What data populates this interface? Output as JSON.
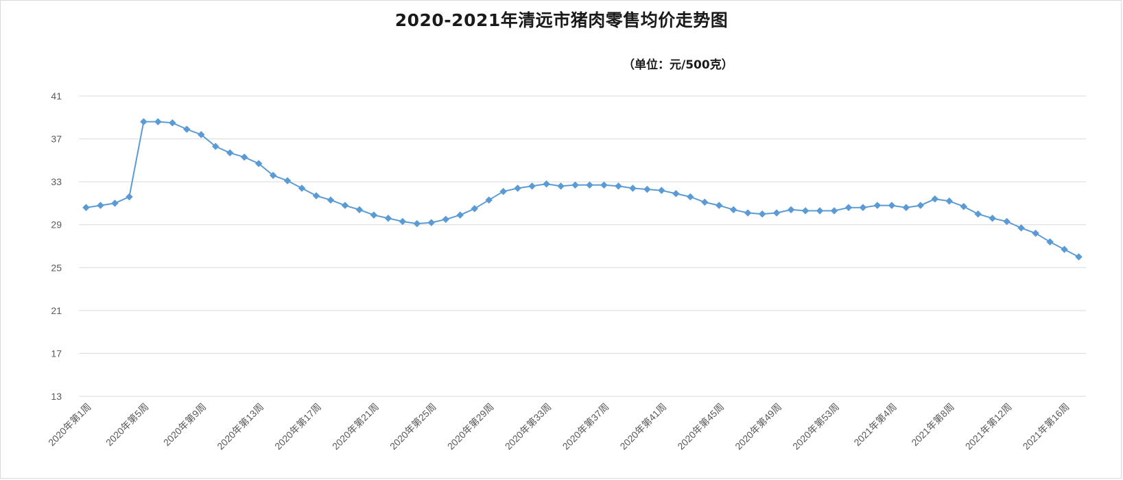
{
  "chart_data": {
    "type": "line",
    "title": "2020-2021年清远市猪肉零售均价走势图",
    "unit": "（单位：元/500克）",
    "ylim": [
      13,
      41
    ],
    "yticks": [
      "13",
      "17",
      "21",
      "25",
      "29",
      "33",
      "37",
      "41"
    ],
    "grid": true,
    "legend": "none",
    "colors": {
      "line": "#5b9bd5",
      "grid": "#d9d9d9",
      "axis_text": "#595959"
    },
    "x": [
      "2020年第1周",
      "2020年第2周",
      "2020年第3周",
      "2020年第4周",
      "2020年第5周",
      "2020年第6周",
      "2020年第7周",
      "2020年第8周",
      "2020年第9周",
      "2020年第10周",
      "2020年第11周",
      "2020年第12周",
      "2020年第13周",
      "2020年第14周",
      "2020年第15周",
      "2020年第16周",
      "2020年第17周",
      "2020年第18周",
      "2020年第19周",
      "2020年第20周",
      "2020年第21周",
      "2020年第22周",
      "2020年第23周",
      "2020年第24周",
      "2020年第25周",
      "2020年第26周",
      "2020年第27周",
      "2020年第28周",
      "2020年第29周",
      "2020年第30周",
      "2020年第31周",
      "2020年第32周",
      "2020年第33周",
      "2020年第34周",
      "2020年第35周",
      "2020年第36周",
      "2020年第37周",
      "2020年第38周",
      "2020年第39周",
      "2020年第40周",
      "2020年第41周",
      "2020年第42周",
      "2020年第43周",
      "2020年第44周",
      "2020年第45周",
      "2020年第46周",
      "2020年第47周",
      "2020年第48周",
      "2020年第49周",
      "2020年第50周",
      "2020年第51周",
      "2020年第52周",
      "2020年第53周",
      "2021年第1周",
      "2021年第2周",
      "2021年第3周",
      "2021年第4周",
      "2021年第5周",
      "2021年第6周",
      "2021年第7周",
      "2021年第8周",
      "2021年第9周",
      "2021年第10周",
      "2021年第11周",
      "2021年第12周",
      "2021年第13周",
      "2021年第14周",
      "2021年第15周",
      "2021年第16周",
      "2021年第17周"
    ],
    "xtick_labels": [
      "2020年第1周",
      "2020年第5周",
      "2020年第9周",
      "2020年第13周",
      "2020年第17周",
      "2020年第21周",
      "2020年第25周",
      "2020年第29周",
      "2020年第33周",
      "2020年第37周",
      "2020年第41周",
      "2020年第45周",
      "2020年第49周",
      "2020年第53周",
      "2021年第4周",
      "2021年第8周",
      "2021年第12周",
      "2021年第16周"
    ],
    "series": [
      {
        "values": [
          30.6,
          30.8,
          31.0,
          31.6,
          38.6,
          38.6,
          38.5,
          37.9,
          37.4,
          36.3,
          35.7,
          35.3,
          34.7,
          33.6,
          33.1,
          32.4,
          31.7,
          31.3,
          30.8,
          30.4,
          29.9,
          29.6,
          29.3,
          29.1,
          29.2,
          29.5,
          29.9,
          30.5,
          31.3,
          32.1,
          32.4,
          32.6,
          32.8,
          32.6,
          32.7,
          32.7,
          32.7,
          32.6,
          32.4,
          32.3,
          32.2,
          31.9,
          31.6,
          31.1,
          30.8,
          30.4,
          30.1,
          30.0,
          30.1,
          30.4,
          30.3,
          30.3,
          30.3,
          30.6,
          30.6,
          30.8,
          30.8,
          30.6,
          30.8,
          31.4,
          31.2,
          30.7,
          30.0,
          29.6,
          29.3,
          28.7,
          28.2,
          27.4,
          26.7,
          26.0
        ]
      }
    ]
  }
}
